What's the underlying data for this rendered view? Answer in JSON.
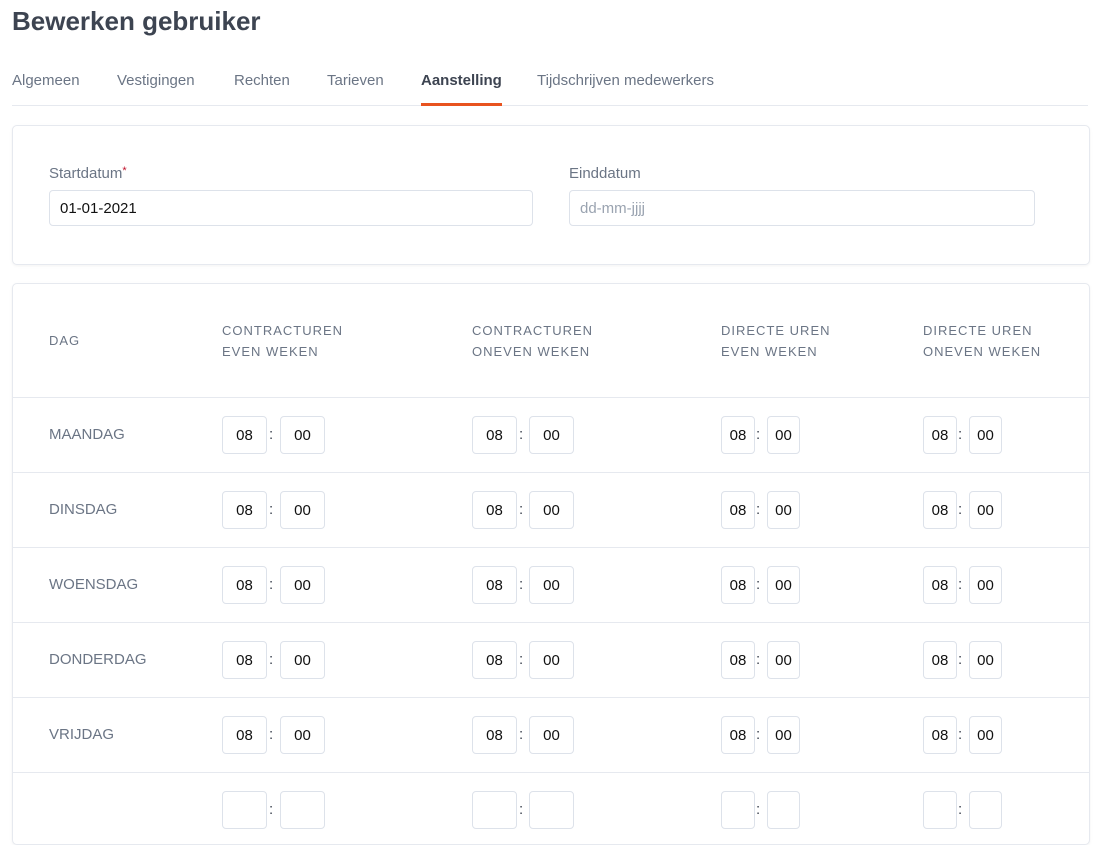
{
  "title": "Bewerken gebruiker",
  "tabs": [
    "Algemeen",
    "Vestigingen",
    "Rechten",
    "Tarieven",
    "Aanstelling",
    "Tijdschrijven medewerkers"
  ],
  "active_tab": "Aanstelling",
  "accent_color": "#e8531f",
  "dates": {
    "start_label": "Startdatum",
    "required_mark": "*",
    "start_value": "01-01-2021",
    "end_label": "Einddatum",
    "end_placeholder": "dd-mm-jjjj",
    "end_value": ""
  },
  "table": {
    "headers": [
      [
        "DAG",
        ""
      ],
      [
        "CONTRACTUREN",
        "EVEN WEKEN"
      ],
      [
        "CONTRACTUREN",
        "ONEVEN WEKEN"
      ],
      [
        "DIRECTE UREN",
        "EVEN WEKEN"
      ],
      [
        "DIRECTE UREN",
        "ONEVEN WEKEN"
      ]
    ],
    "separator": ":",
    "rows": [
      {
        "day": "MAANDAG",
        "times": [
          [
            "08",
            "00"
          ],
          [
            "08",
            "00"
          ],
          [
            "08",
            "00"
          ],
          [
            "08",
            "00"
          ]
        ]
      },
      {
        "day": "DINSDAG",
        "times": [
          [
            "08",
            "00"
          ],
          [
            "08",
            "00"
          ],
          [
            "08",
            "00"
          ],
          [
            "08",
            "00"
          ]
        ]
      },
      {
        "day": "WOENSDAG",
        "times": [
          [
            "08",
            "00"
          ],
          [
            "08",
            "00"
          ],
          [
            "08",
            "00"
          ],
          [
            "08",
            "00"
          ]
        ]
      },
      {
        "day": "DONDERDAG",
        "times": [
          [
            "08",
            "00"
          ],
          [
            "08",
            "00"
          ],
          [
            "08",
            "00"
          ],
          [
            "08",
            "00"
          ]
        ]
      },
      {
        "day": "VRIJDAG",
        "times": [
          [
            "08",
            "00"
          ],
          [
            "08",
            "00"
          ],
          [
            "08",
            "00"
          ],
          [
            "08",
            "00"
          ]
        ]
      },
      {
        "day": "",
        "times": [
          [
            "",
            ""
          ],
          [
            "",
            ""
          ],
          [
            "",
            ""
          ],
          [
            "",
            ""
          ]
        ]
      }
    ]
  }
}
